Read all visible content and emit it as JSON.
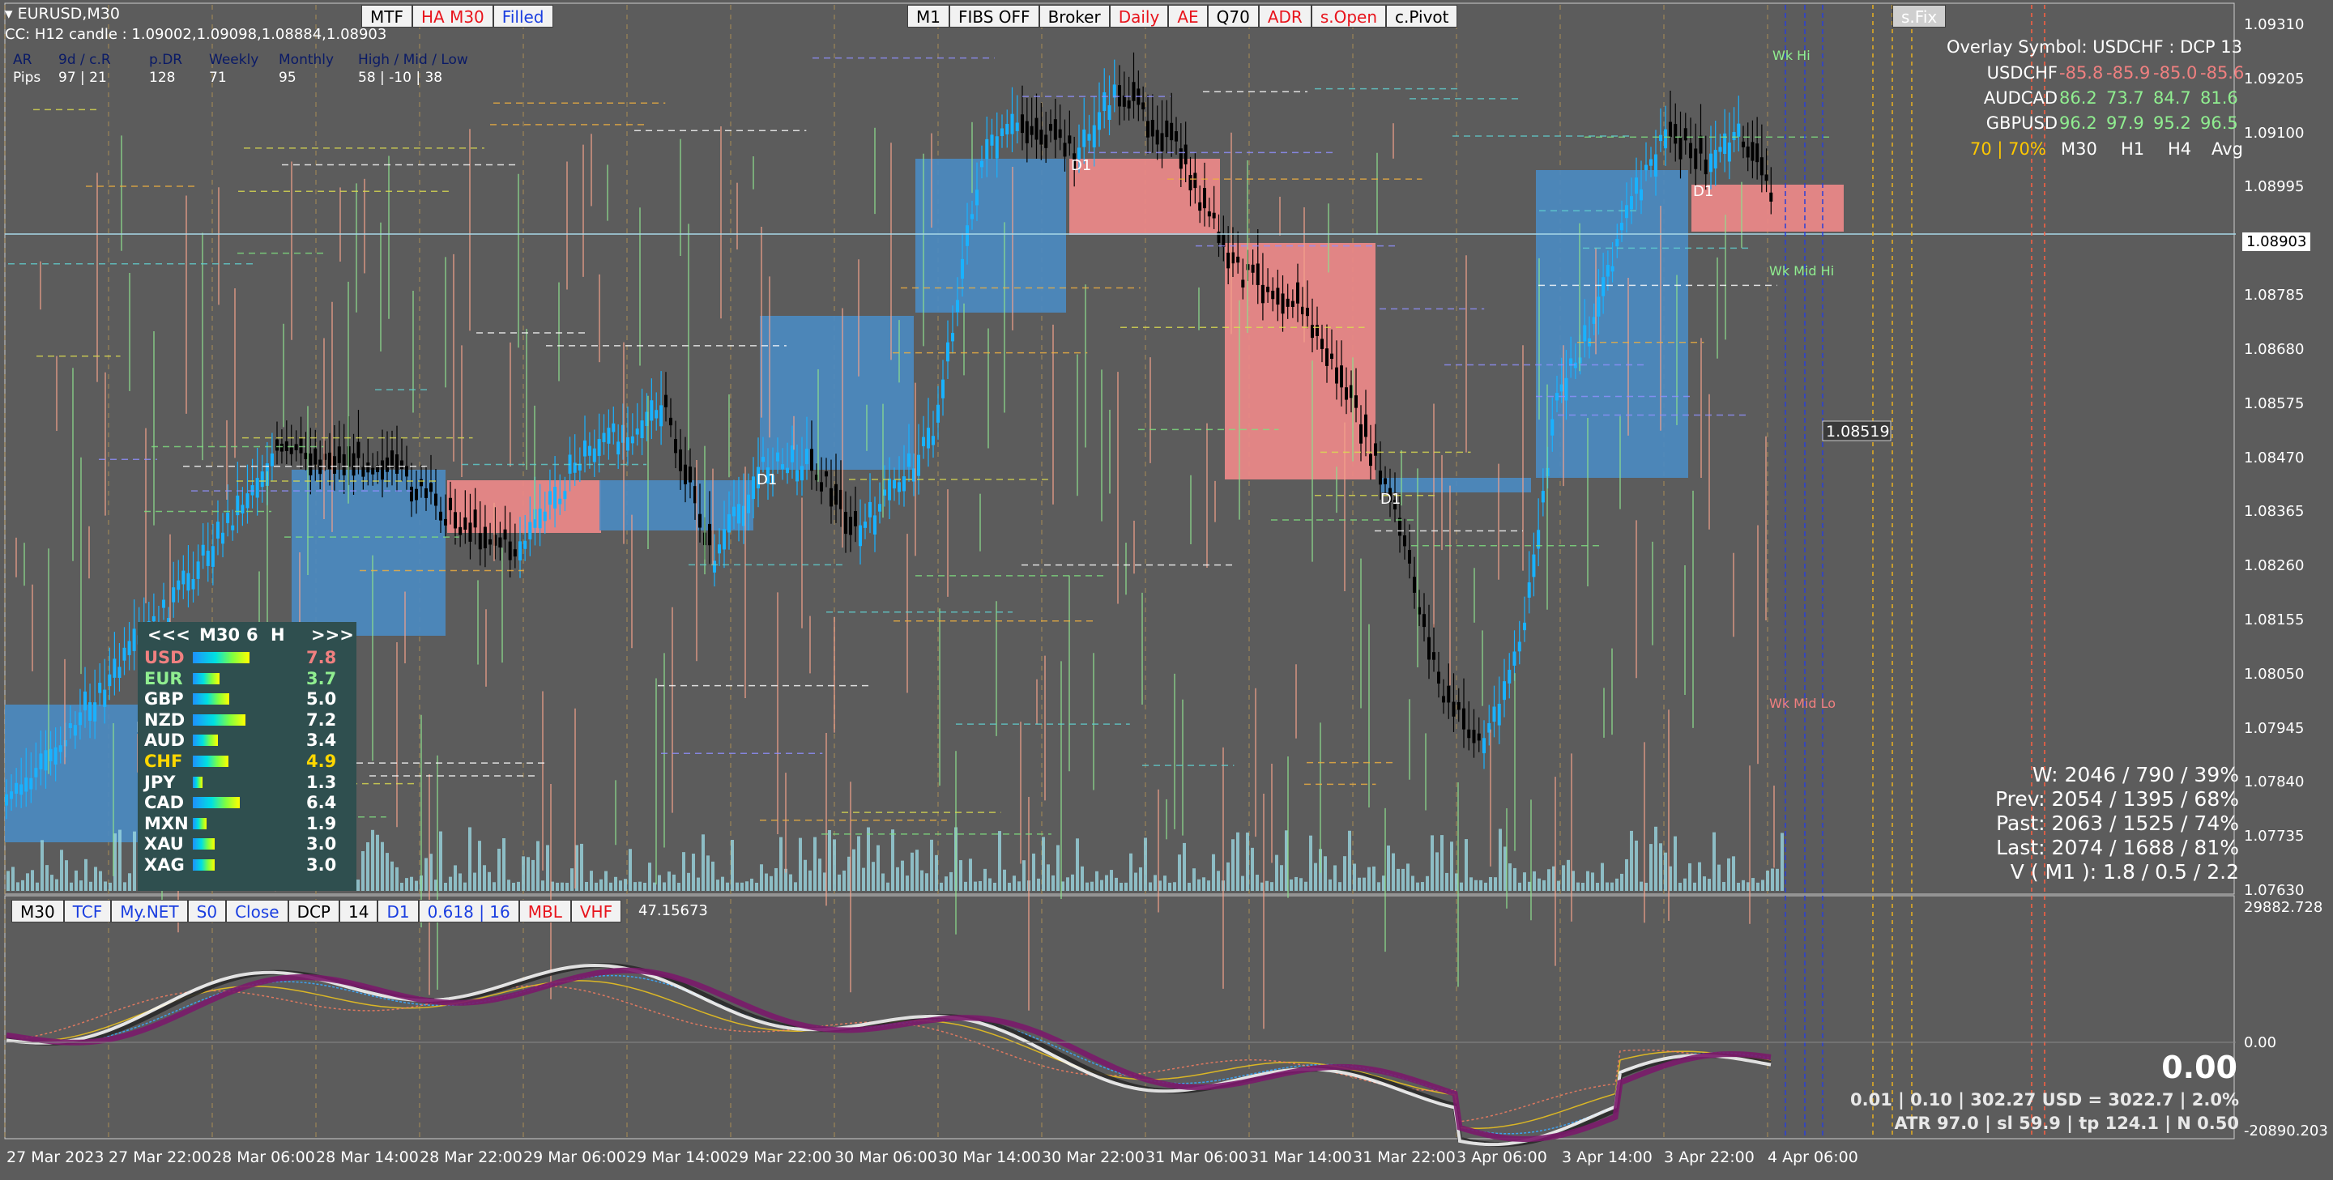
{
  "window": {
    "symbol_label": "EURUSD,M30",
    "candle_info": "CC: H12 candle : 1.09002,1.09098,1.08884,1.08903"
  },
  "pips_table": {
    "labels_row": [
      "AR",
      "9d / c.R",
      "p.DR",
      "Weekly",
      "Monthly",
      "High / Mid / Low"
    ],
    "values_row": [
      "Pips",
      "97 | 21",
      "128",
      "71",
      "95",
      "58 | -10 | 38"
    ]
  },
  "top_left_buttons": [
    {
      "label": "MTF",
      "style": "normal"
    },
    {
      "label": "HA M30",
      "style": "red"
    },
    {
      "label": "Filled",
      "style": "blue"
    }
  ],
  "top_center_buttons": [
    {
      "label": "M1",
      "style": "normal"
    },
    {
      "label": "FIBS OFF",
      "style": "normal"
    },
    {
      "label": "Broker",
      "style": "normal"
    },
    {
      "label": "Daily",
      "style": "red"
    },
    {
      "label": "AE",
      "style": "red"
    },
    {
      "label": "Q70",
      "style": "normal"
    },
    {
      "label": "ADR",
      "style": "red"
    },
    {
      "label": "s.Open",
      "style": "red"
    },
    {
      "label": "c.Pivot",
      "style": "normal"
    }
  ],
  "sfix_button": "s.Fix",
  "overlay": {
    "title": "Overlay Symbol: USDCHF : DCP 13",
    "rows": [
      {
        "symbol": "USDCHF",
        "values": [
          "-85.8",
          "-85.9",
          "-85.0",
          "-85.6"
        ],
        "color": "#f08080"
      },
      {
        "symbol": "AUDCAD",
        "values": [
          "86.2",
          "73.7",
          "84.7",
          "81.6"
        ],
        "color": "#90ee90"
      },
      {
        "symbol": "GBPUSD",
        "values": [
          "96.2",
          "97.9",
          "95.2",
          "96.5"
        ],
        "color": "#90ee90"
      }
    ],
    "footer_pct": "70 | 70%",
    "footer_cols": [
      "M30",
      "H1",
      "H4",
      "Avg"
    ]
  },
  "price_axis": [
    "1.09310",
    "1.09205",
    "1.09100",
    "1.08995",
    "1.08903",
    "1.08785",
    "1.08680",
    "1.08575",
    "1.08470",
    "1.08365",
    "1.08260",
    "1.08155",
    "1.08050",
    "1.07945",
    "1.07840",
    "1.07735",
    "1.07630"
  ],
  "current_price": "1.08903",
  "marked_price": "1.08519",
  "week_labels": [
    "Wk Hi",
    "Wk Mid Hi",
    "Wk Mid Lo"
  ],
  "d1_label": "D1",
  "stats": [
    "W: 2046 / 790 / 39%",
    "Prev: 2054 / 1395 / 68%",
    "Past: 2063 / 1525 / 74%",
    "Last: 2074 / 1688 / 81%",
    "V ( M1 ): 1.8 / 0.5 / 2.2"
  ],
  "currency_panel": {
    "header": [
      "<<<",
      "M30",
      "6",
      "H",
      ">>>"
    ],
    "rows": [
      {
        "name": "USD",
        "value": "7.8",
        "strength": 0.78,
        "color": "#f08080"
      },
      {
        "name": "EUR",
        "value": "3.7",
        "strength": 0.37,
        "color": "#90ee90"
      },
      {
        "name": "GBP",
        "value": "5.0",
        "strength": 0.5,
        "color": "#ffffff"
      },
      {
        "name": "NZD",
        "value": "7.2",
        "strength": 0.72,
        "color": "#ffffff"
      },
      {
        "name": "AUD",
        "value": "3.4",
        "strength": 0.34,
        "color": "#ffffff"
      },
      {
        "name": "CHF",
        "value": "4.9",
        "strength": 0.49,
        "color": "#ffd700"
      },
      {
        "name": "JPY",
        "value": "1.3",
        "strength": 0.13,
        "color": "#ffffff"
      },
      {
        "name": "CAD",
        "value": "6.4",
        "strength": 0.64,
        "color": "#ffffff"
      },
      {
        "name": "MXN",
        "value": "1.9",
        "strength": 0.19,
        "color": "#ffffff"
      },
      {
        "name": "XAU",
        "value": "3.0",
        "strength": 0.3,
        "color": "#ffffff"
      },
      {
        "name": "XAG",
        "value": "3.0",
        "strength": 0.3,
        "color": "#ffffff"
      }
    ]
  },
  "sub_buttons": [
    {
      "label": "M30",
      "style": "normal"
    },
    {
      "label": "TCF",
      "style": "blue"
    },
    {
      "label": "My.NET",
      "style": "blue"
    },
    {
      "label": "S0",
      "style": "blue"
    },
    {
      "label": "Close",
      "style": "blue"
    },
    {
      "label": "DCP",
      "style": "normal"
    },
    {
      "label": "14",
      "style": "normal"
    },
    {
      "label": "D1",
      "style": "blue"
    },
    {
      "label": "0.618 | 16",
      "style": "blue"
    },
    {
      "label": "MBL",
      "style": "red"
    },
    {
      "label": "VHF",
      "style": "red"
    }
  ],
  "sub_value": "47.15673",
  "sub_axis": {
    "top": "29882.728",
    "mid": "0.00",
    "bottom": "-20890.203"
  },
  "sub_info": {
    "big_value": "0.00",
    "line1": "0.01 | 0.10 | 302.27 USD = 3022.7 | 2.0%",
    "line2": "ATR 97.0 | sl 59.9 | tp 124.1 | N 0.50"
  },
  "time_axis": [
    "27 Mar 2023",
    "27 Mar 22:00",
    "28 Mar 06:00",
    "28 Mar 14:00",
    "28 Mar 22:00",
    "29 Mar 06:00",
    "29 Mar 14:00",
    "29 Mar 22:00",
    "30 Mar 06:00",
    "30 Mar 14:00",
    "30 Mar 22:00",
    "31 Mar 06:00",
    "31 Mar 14:00",
    "31 Mar 22:00",
    "3 Apr 06:00",
    "3 Apr 14:00",
    "3 Apr 22:00",
    "4 Apr 06:00"
  ]
}
